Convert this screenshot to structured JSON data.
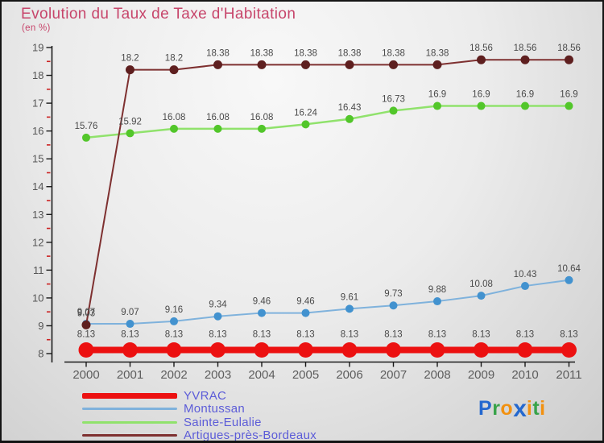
{
  "title": "Evolution du Taux de Taxe d'Habitation",
  "subtitle": "(en %)",
  "chart_data": {
    "type": "line",
    "x": [
      2000,
      2001,
      2002,
      2003,
      2004,
      2005,
      2006,
      2007,
      2008,
      2009,
      2010,
      2011
    ],
    "series": [
      {
        "name": "YVRAC",
        "color": "#ec1111",
        "dot_color": "#ec1111",
        "line_width": 8,
        "dot_radius": 9.5,
        "values": [
          8.13,
          8.13,
          8.13,
          8.13,
          8.13,
          8.13,
          8.13,
          8.13,
          8.13,
          8.13,
          8.13,
          8.13
        ]
      },
      {
        "name": "Montussan",
        "color": "#7fb2dc",
        "dot_color": "#4292cf",
        "line_width": 2,
        "dot_radius": 5,
        "values": [
          9.07,
          9.07,
          9.16,
          9.34,
          9.46,
          9.46,
          9.61,
          9.73,
          9.88,
          10.08,
          10.43,
          10.64
        ]
      },
      {
        "name": "Sainte-Eulalie",
        "color": "#90e26c",
        "dot_color": "#52c62a",
        "line_width": 2.5,
        "dot_radius": 5,
        "values": [
          15.76,
          15.92,
          16.08,
          16.08,
          16.08,
          16.24,
          16.43,
          16.73,
          16.9,
          16.9,
          16.9,
          16.9
        ]
      },
      {
        "name": "Artigues-près-Bordeaux",
        "color": "#7e3030",
        "dot_color": "#5e1f1f",
        "line_width": 2,
        "dot_radius": 5.5,
        "values": [
          9.03,
          18.2,
          18.2,
          18.38,
          18.38,
          18.38,
          18.38,
          18.38,
          18.38,
          18.56,
          18.56,
          18.56
        ]
      }
    ],
    "title": "Evolution du Taux de Taxe d'Habitation",
    "subtitle": "(en %)",
    "xlabel": "",
    "ylabel": "",
    "ylim": [
      8,
      19
    ],
    "yticks": [
      8,
      9,
      10,
      11,
      12,
      13,
      14,
      15,
      16,
      17,
      18,
      19
    ],
    "y_minor_ticks": [
      8.5,
      9.5,
      10.5,
      11.5,
      12.5,
      13.5,
      14.5,
      15.5,
      16.5,
      17.5,
      18.5
    ],
    "grid": false,
    "legend_position": "bottom-left",
    "colors": {
      "axis": "#1a1a1a",
      "minor_tick": "#cc2222",
      "tick_label": "#555555",
      "year_label": "#5d5d5d",
      "value_label": "#4a4a4a"
    }
  },
  "legend": {
    "text_color": "#5c5cd8",
    "items": [
      {
        "label": "YVRAC",
        "color": "#ec1111",
        "thickness": 7
      },
      {
        "label": "Montussan",
        "color": "#7fb2dc",
        "thickness": 3
      },
      {
        "label": "Sainte-Eulalie",
        "color": "#90e26c",
        "thickness": 3
      },
      {
        "label": "Artigues-près-Bordeaux",
        "color": "#7e3030",
        "thickness": 3
      }
    ]
  },
  "logo": {
    "name": "proxiti",
    "letters": [
      {
        "ch": "P",
        "color": "#2468cf"
      },
      {
        "ch": "r",
        "color": "#38a34a"
      },
      {
        "ch": "o",
        "color": "#f29111"
      },
      {
        "ch": "x",
        "color": "#2468cf"
      },
      {
        "ch": "i",
        "color": "#f29111"
      },
      {
        "ch": "t",
        "color": "#38a34a"
      },
      {
        "ch": "i",
        "color": "#f29111"
      }
    ]
  }
}
